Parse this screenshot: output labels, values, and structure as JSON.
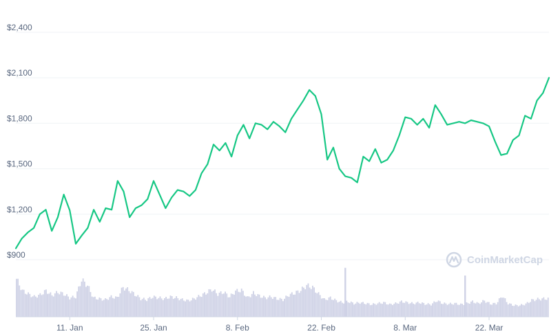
{
  "chart_data": {
    "type": "line",
    "title": "",
    "xlabel": "",
    "ylabel": "",
    "ylim": [
      900,
      2400
    ],
    "y_ticks": [
      900,
      1200,
      1500,
      1800,
      2100,
      2400
    ],
    "y_tick_labels": [
      "$900",
      "$1,200",
      "$1,500",
      "$1,800",
      "$2,100",
      "$2,400"
    ],
    "x_range": [
      "2021-01-02",
      "2021-04-01"
    ],
    "x_ticks": [
      {
        "date": "2021-01-11",
        "label": "11. Jan"
      },
      {
        "date": "2021-01-25",
        "label": "25. Jan"
      },
      {
        "date": "2021-02-08",
        "label": "8. Feb"
      },
      {
        "date": "2021-02-22",
        "label": "22. Feb"
      },
      {
        "date": "2021-03-08",
        "label": "8. Mar"
      },
      {
        "date": "2021-03-22",
        "label": "22. Mar"
      }
    ],
    "grid": true,
    "line_color": "#16c784",
    "volume_color": "#cfd2e6",
    "series": [
      {
        "values": [
          [
            "2021-01-02",
            975
          ],
          [
            "2021-01-03",
            1040
          ],
          [
            "2021-01-04",
            1080
          ],
          [
            "2021-01-05",
            1110
          ],
          [
            "2021-01-06",
            1200
          ],
          [
            "2021-01-07",
            1230
          ],
          [
            "2021-01-08",
            1090
          ],
          [
            "2021-01-09",
            1180
          ],
          [
            "2021-01-10",
            1330
          ],
          [
            "2021-01-11",
            1225
          ],
          [
            "2021-01-12",
            1005
          ],
          [
            "2021-01-13",
            1060
          ],
          [
            "2021-01-14",
            1110
          ],
          [
            "2021-01-15",
            1230
          ],
          [
            "2021-01-16",
            1150
          ],
          [
            "2021-01-17",
            1240
          ],
          [
            "2021-01-18",
            1230
          ],
          [
            "2021-01-19",
            1420
          ],
          [
            "2021-01-20",
            1350
          ],
          [
            "2021-01-21",
            1180
          ],
          [
            "2021-01-22",
            1240
          ],
          [
            "2021-01-23",
            1260
          ],
          [
            "2021-01-24",
            1300
          ],
          [
            "2021-01-25",
            1420
          ],
          [
            "2021-01-26",
            1330
          ],
          [
            "2021-01-27",
            1240
          ],
          [
            "2021-01-28",
            1310
          ],
          [
            "2021-01-29",
            1360
          ],
          [
            "2021-01-30",
            1350
          ],
          [
            "2021-01-31",
            1320
          ],
          [
            "2021-02-01",
            1360
          ],
          [
            "2021-02-02",
            1470
          ],
          [
            "2021-02-03",
            1530
          ],
          [
            "2021-02-04",
            1660
          ],
          [
            "2021-02-05",
            1620
          ],
          [
            "2021-02-06",
            1670
          ],
          [
            "2021-02-07",
            1580
          ],
          [
            "2021-02-08",
            1720
          ],
          [
            "2021-02-09",
            1790
          ],
          [
            "2021-02-10",
            1700
          ],
          [
            "2021-02-11",
            1800
          ],
          [
            "2021-02-12",
            1790
          ],
          [
            "2021-02-13",
            1760
          ],
          [
            "2021-02-14",
            1810
          ],
          [
            "2021-02-15",
            1780
          ],
          [
            "2021-02-16",
            1740
          ],
          [
            "2021-02-17",
            1830
          ],
          [
            "2021-02-18",
            1890
          ],
          [
            "2021-02-19",
            1950
          ],
          [
            "2021-02-20",
            2020
          ],
          [
            "2021-02-21",
            1980
          ],
          [
            "2021-02-22",
            1860
          ],
          [
            "2021-02-23",
            1560
          ],
          [
            "2021-02-24",
            1640
          ],
          [
            "2021-02-25",
            1500
          ],
          [
            "2021-02-26",
            1450
          ],
          [
            "2021-02-27",
            1440
          ],
          [
            "2021-02-28",
            1410
          ],
          [
            "2021-03-01",
            1580
          ],
          [
            "2021-03-02",
            1550
          ],
          [
            "2021-03-03",
            1630
          ],
          [
            "2021-03-04",
            1540
          ],
          [
            "2021-03-05",
            1560
          ],
          [
            "2021-03-06",
            1620
          ],
          [
            "2021-03-07",
            1720
          ],
          [
            "2021-03-08",
            1840
          ],
          [
            "2021-03-09",
            1830
          ],
          [
            "2021-03-10",
            1790
          ],
          [
            "2021-03-11",
            1830
          ],
          [
            "2021-03-12",
            1770
          ],
          [
            "2021-03-13",
            1920
          ],
          [
            "2021-03-14",
            1860
          ],
          [
            "2021-03-15",
            1790
          ],
          [
            "2021-03-16",
            1800
          ],
          [
            "2021-03-17",
            1810
          ],
          [
            "2021-03-18",
            1800
          ],
          [
            "2021-03-19",
            1820
          ],
          [
            "2021-03-20",
            1810
          ],
          [
            "2021-03-21",
            1800
          ],
          [
            "2021-03-22",
            1780
          ],
          [
            "2021-03-23",
            1680
          ],
          [
            "2021-03-24",
            1590
          ],
          [
            "2021-03-25",
            1600
          ],
          [
            "2021-03-26",
            1690
          ],
          [
            "2021-03-27",
            1720
          ],
          [
            "2021-03-28",
            1850
          ],
          [
            "2021-03-29",
            1830
          ],
          [
            "2021-03-30",
            1950
          ],
          [
            "2021-03-31",
            2000
          ],
          [
            "2021-04-01",
            2100
          ]
        ]
      }
    ],
    "volume_relative": [
      0.8,
      0.55,
      0.48,
      0.42,
      0.46,
      0.55,
      0.45,
      0.52,
      0.48,
      0.4,
      0.42,
      0.78,
      0.66,
      0.4,
      0.38,
      0.36,
      0.42,
      0.4,
      0.62,
      0.56,
      0.47,
      0.38,
      0.36,
      0.42,
      0.4,
      0.38,
      0.42,
      0.4,
      0.36,
      0.34,
      0.38,
      0.44,
      0.5,
      0.58,
      0.48,
      0.52,
      0.42,
      0.54,
      0.56,
      0.4,
      0.5,
      0.44,
      0.4,
      0.42,
      0.38,
      0.36,
      0.46,
      0.5,
      0.56,
      0.66,
      0.62,
      0.48,
      0.36,
      0.4,
      0.34,
      0.3,
      0.32,
      0.28,
      0.3,
      0.28,
      0.26,
      0.28,
      0.3,
      0.26,
      0.28,
      0.32,
      0.3,
      0.28,
      0.3,
      0.27,
      0.26,
      0.34,
      0.28,
      0.27,
      0.28,
      0.26,
      0.28,
      0.32,
      0.28,
      0.34,
      0.27,
      0.28,
      0.44,
      0.28,
      0.24,
      0.24,
      0.27,
      0.35,
      0.37,
      0.38
    ],
    "volume_spikes": [
      [
        "2021-02-26",
        0.95
      ],
      [
        "2021-03-18",
        0.8
      ]
    ],
    "watermark": "CoinMarketCap"
  }
}
